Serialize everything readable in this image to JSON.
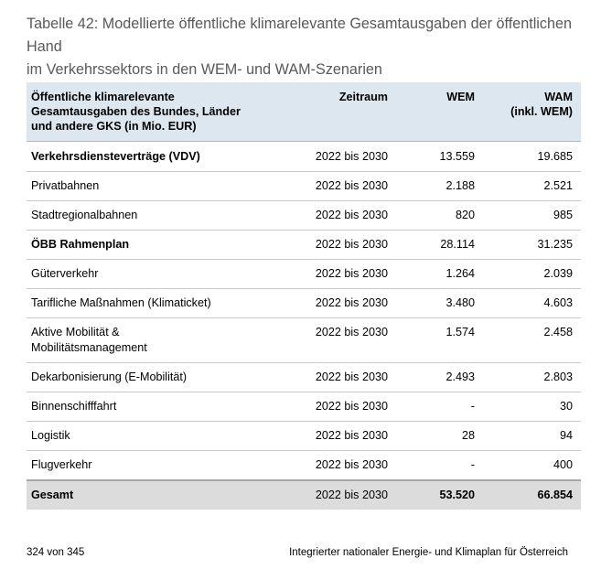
{
  "caption": {
    "line1": "Tabelle 42: Modellierte öffentliche klimarelevante Gesamtausgaben der öffentlichen Hand",
    "line2": "im Verkehrssektors in den WEM- und WAM-Szenarien"
  },
  "table": {
    "header": {
      "col1": [
        "Öffentliche klimarelevante",
        "Gesamtausgaben des Bundes, Länder",
        "und andere GKS (in Mio. EUR)"
      ],
      "col2": "Zeitraum",
      "col3": "WEM",
      "col4": [
        "WAM",
        "(inkl. WEM)"
      ]
    },
    "rows": [
      {
        "label": "Verkehrsdiensteverträge (VDV)",
        "period": "2022 bis 2030",
        "wem": "13.559",
        "wam": "19.685"
      },
      {
        "label": "Privatbahnen",
        "period": "2022 bis 2030",
        "wem": "2.188",
        "wam": "2.521"
      },
      {
        "label": "Stadtregionalbahnen",
        "period": "2022 bis 2030",
        "wem": "820",
        "wam": "985"
      },
      {
        "label": "ÖBB Rahmenplan",
        "period": "2022 bis 2030",
        "wem": "28.114",
        "wam": "31.235"
      },
      {
        "label": "Güterverkehr",
        "period": "2022 bis 2030",
        "wem": "1.264",
        "wam": "2.039"
      },
      {
        "label": "Tarifliche Maßnahmen (Klimaticket)",
        "period": "2022 bis 2030",
        "wem": "3.480",
        "wam": "4.603"
      },
      {
        "label_line1": "Aktive Mobilität &",
        "label_line2": "Mobilitätsmanagement",
        "period": "2022 bis 2030",
        "wem": "1.574",
        "wam": "2.458"
      },
      {
        "label": "Dekarbonisierung (E-Mobilität)",
        "period": "2022 bis 2030",
        "wem": "2.493",
        "wam": "2.803"
      },
      {
        "label": "Binnenschifffahrt",
        "period": "2022 bis 2030",
        "wem": "-",
        "wam": "30"
      },
      {
        "label": "Logistik",
        "period": "2022 bis 2030",
        "wem": "28",
        "wam": "94"
      },
      {
        "label": "Flugverkehr",
        "period": "2022 bis 2030",
        "wem": "-",
        "wam": "400"
      }
    ],
    "total": {
      "label": "Gesamt",
      "period": "2022 bis 2030",
      "wem": "53.520",
      "wam": "66.854"
    }
  },
  "footer": {
    "page": "324 von 345",
    "title": "Integrierter nationaler Energie- und Klimaplan für Österreich"
  }
}
